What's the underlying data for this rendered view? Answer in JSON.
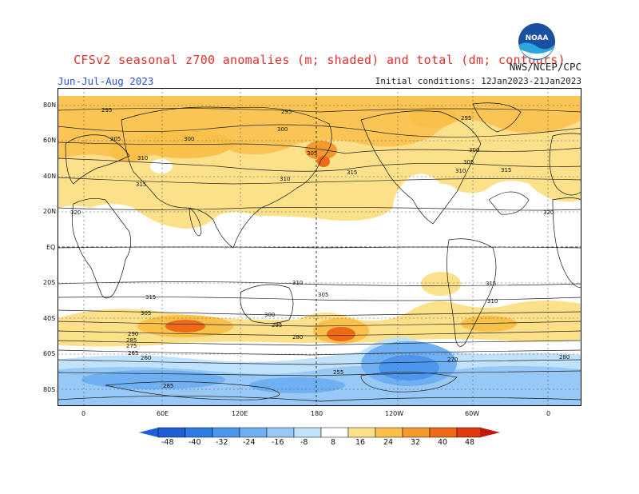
{
  "header": {
    "title": "CFSv2 seasonal z700 anomalies (m; shaded) and total (dm; contours)",
    "season": "Jun-Jul-Aug 2023",
    "agency": "NWS/NCEP/CPC",
    "initial_conditions": "Initial conditions: 12Jan2023-21Jan2023",
    "logo_text": "NOAA"
  },
  "axes": {
    "lat_labels": [
      "80N",
      "60N",
      "40N",
      "20N",
      "EQ",
      "20S",
      "40S",
      "60S",
      "80S"
    ],
    "lon_labels": [
      "0",
      "60E",
      "120E",
      "180",
      "120W",
      "60W",
      "0"
    ]
  },
  "contour_labels": [
    {
      "text": "295"
    },
    {
      "text": "295"
    },
    {
      "text": "295"
    },
    {
      "text": "300"
    },
    {
      "text": "300"
    },
    {
      "text": "300"
    },
    {
      "text": "305"
    },
    {
      "text": "305"
    },
    {
      "text": "305"
    },
    {
      "text": "310"
    },
    {
      "text": "310"
    },
    {
      "text": "310"
    },
    {
      "text": "315"
    },
    {
      "text": "315"
    },
    {
      "text": "315"
    },
    {
      "text": "320"
    },
    {
      "text": "320"
    },
    {
      "text": "310"
    },
    {
      "text": "315"
    },
    {
      "text": "315"
    },
    {
      "text": "305"
    },
    {
      "text": "310"
    },
    {
      "text": "305"
    },
    {
      "text": "300"
    },
    {
      "text": "295"
    },
    {
      "text": "290"
    },
    {
      "text": "285"
    },
    {
      "text": "280"
    },
    {
      "text": "275"
    },
    {
      "text": "270"
    },
    {
      "text": "265"
    },
    {
      "text": "260"
    },
    {
      "text": "255"
    },
    {
      "text": "285"
    },
    {
      "text": "280"
    }
  ],
  "colorbar": {
    "labels": [
      "-48",
      "-40",
      "-32",
      "-24",
      "-16",
      "-8",
      "8",
      "16",
      "24",
      "32",
      "40",
      "48"
    ],
    "colors": [
      "#1f5fd6",
      "#2e7be6",
      "#4c96ee",
      "#6fb0f2",
      "#97c8f6",
      "#c0e2fa",
      "#ffffff",
      "#fce08a",
      "#f9c04a",
      "#f39a2a",
      "#ec6a18",
      "#e03a10",
      "#c21a0a"
    ]
  },
  "map_colors": {
    "ocean": "#ffffff",
    "light_yellow": "#fce08a",
    "orange": "#f9c04a",
    "dark_orange": "#f39a2a",
    "red_orange": "#ec6a18",
    "light_blue": "#c0e2fa",
    "blue": "#97c8f6",
    "mid_blue": "#6fb0f2",
    "dark_blue": "#4c96ee"
  }
}
